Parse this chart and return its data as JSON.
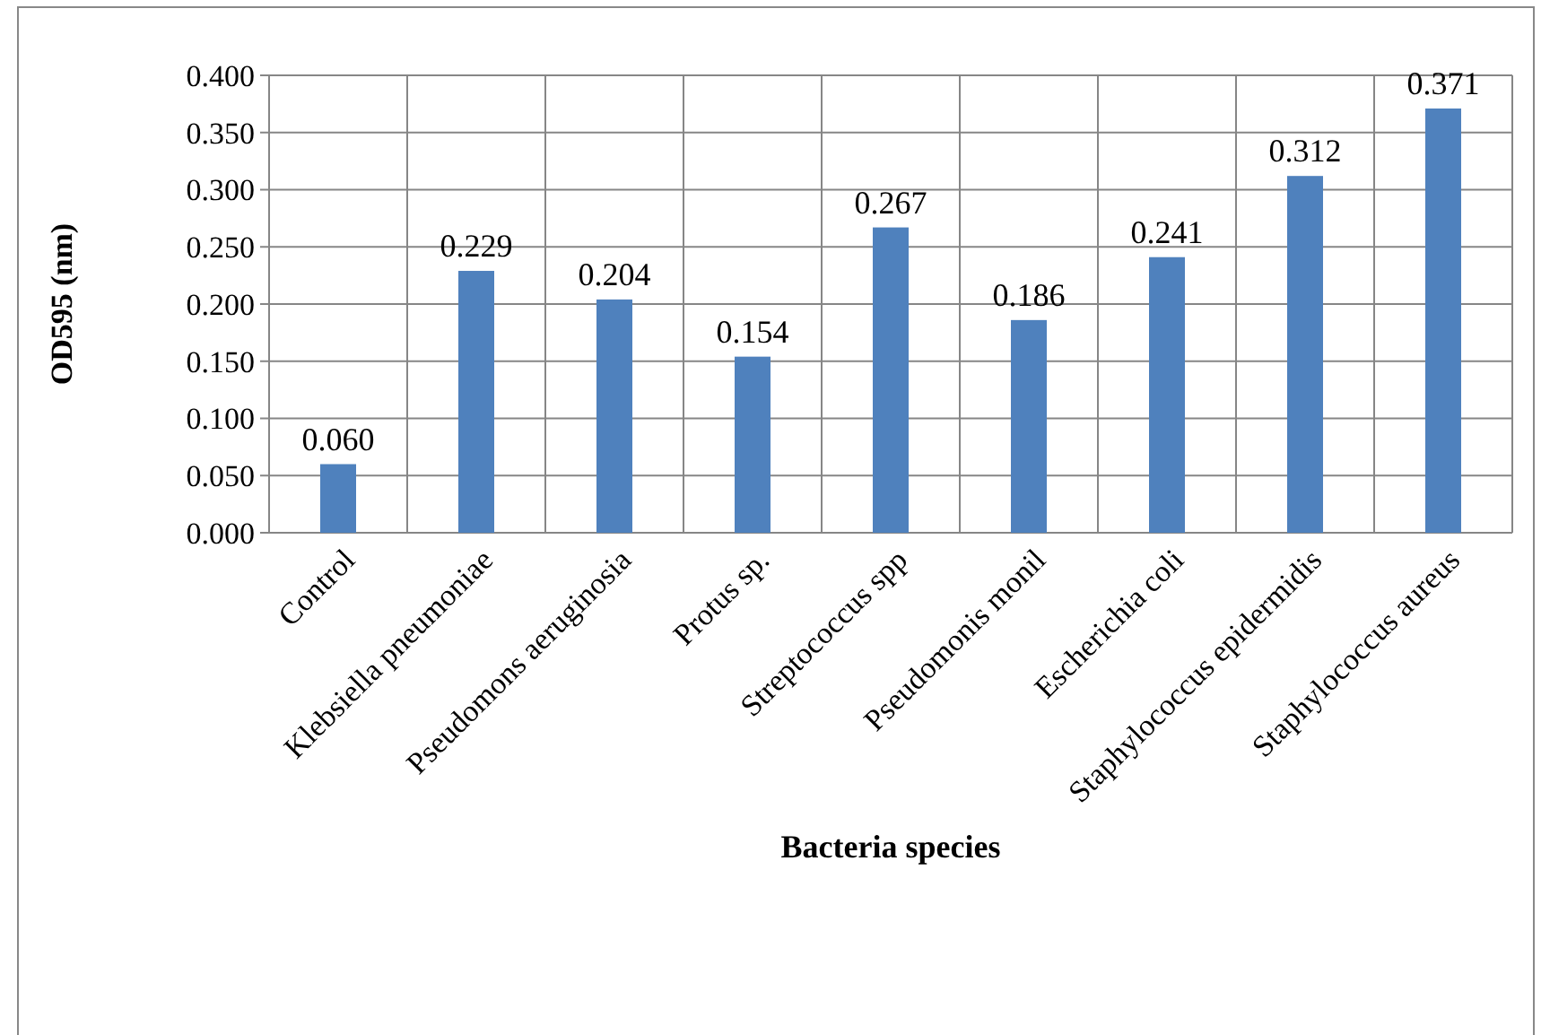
{
  "chart_data": {
    "type": "bar",
    "xlabel": "Bacteria species",
    "ylabel": "OD595 (nm)",
    "categories": [
      "Control",
      "Klebsiella pneumoniae",
      "Pseudomons aeruginosia",
      "Protus  sp.",
      "Streptococcus spp",
      "Pseudomonis monil",
      "Escherichia coli",
      "Staphylococcus epidermidis",
      "Staphylococcus aureus"
    ],
    "values": [
      0.06,
      0.229,
      0.204,
      0.154,
      0.267,
      0.186,
      0.241,
      0.312,
      0.371
    ],
    "value_labels": [
      "0.060",
      "0.229",
      "0.204",
      "0.154",
      "0.267",
      "0.186",
      "0.241",
      "0.312",
      "0.371"
    ],
    "color": "#4f81bd",
    "ylim": [
      0,
      0.4
    ],
    "yticks": [
      {
        "value": 0,
        "label": "0.000"
      },
      {
        "value": 0.05,
        "label": "0.050"
      },
      {
        "value": 0.1,
        "label": "0.100"
      },
      {
        "value": 0.15,
        "label": "0.150"
      },
      {
        "value": 0.2,
        "label": "0.200"
      },
      {
        "value": 0.25,
        "label": "0.250"
      },
      {
        "value": 0.3,
        "label": "0.300"
      },
      {
        "value": 0.35,
        "label": "0.350"
      },
      {
        "value": 0.4,
        "label": "0.400"
      }
    ],
    "grid": true
  }
}
